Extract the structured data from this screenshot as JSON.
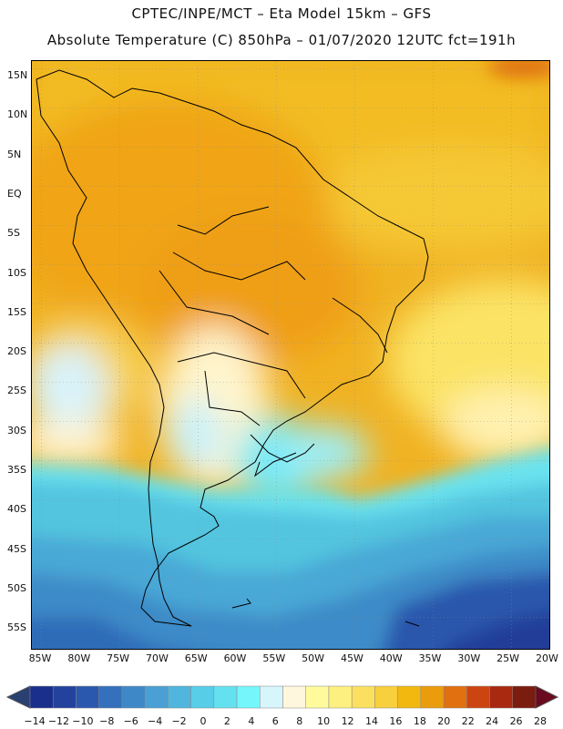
{
  "title": {
    "line1": "CPTEC/INPE/MCT –  Eta Model 15km – GFS",
    "line2": "Absolute Temperature (C) 850hPa – 01/07/2020 12UTC fct=191h"
  },
  "map": {
    "latitude_labels": [
      "15N",
      "10N",
      "5N",
      "EQ",
      "5S",
      "10S",
      "15S",
      "20S",
      "25S",
      "30S",
      "35S",
      "40S",
      "45S",
      "50S",
      "55S"
    ],
    "longitude_labels": [
      "85W",
      "80W",
      "75W",
      "70W",
      "65W",
      "60W",
      "55W",
      "50W",
      "45W",
      "40W",
      "35W",
      "30W",
      "25W",
      "20W"
    ]
  },
  "colorbar": {
    "labels": [
      "−14",
      "−12",
      "−10",
      "−8",
      "−6",
      "−4",
      "−2",
      "0",
      "2",
      "4",
      "6",
      "8",
      "10",
      "12",
      "14",
      "16",
      "18",
      "20",
      "22",
      "24",
      "26",
      "28"
    ],
    "colors": [
      "#1a2f8c",
      "#22429e",
      "#2a58ae",
      "#3470bc",
      "#3f88c8",
      "#4aa0d4",
      "#50b6de",
      "#57cde8",
      "#64e1f0",
      "#74f6fb",
      "#d6f6fc",
      "#fff6de",
      "#fffb9c",
      "#fdf080",
      "#fbe060",
      "#f8cf3c",
      "#f2b80f",
      "#ea9c0d",
      "#e07010",
      "#cc4510",
      "#a82810",
      "#7a1c10"
    ],
    "min_color": "#2a4070",
    "max_color": "#6a0a1e"
  }
}
